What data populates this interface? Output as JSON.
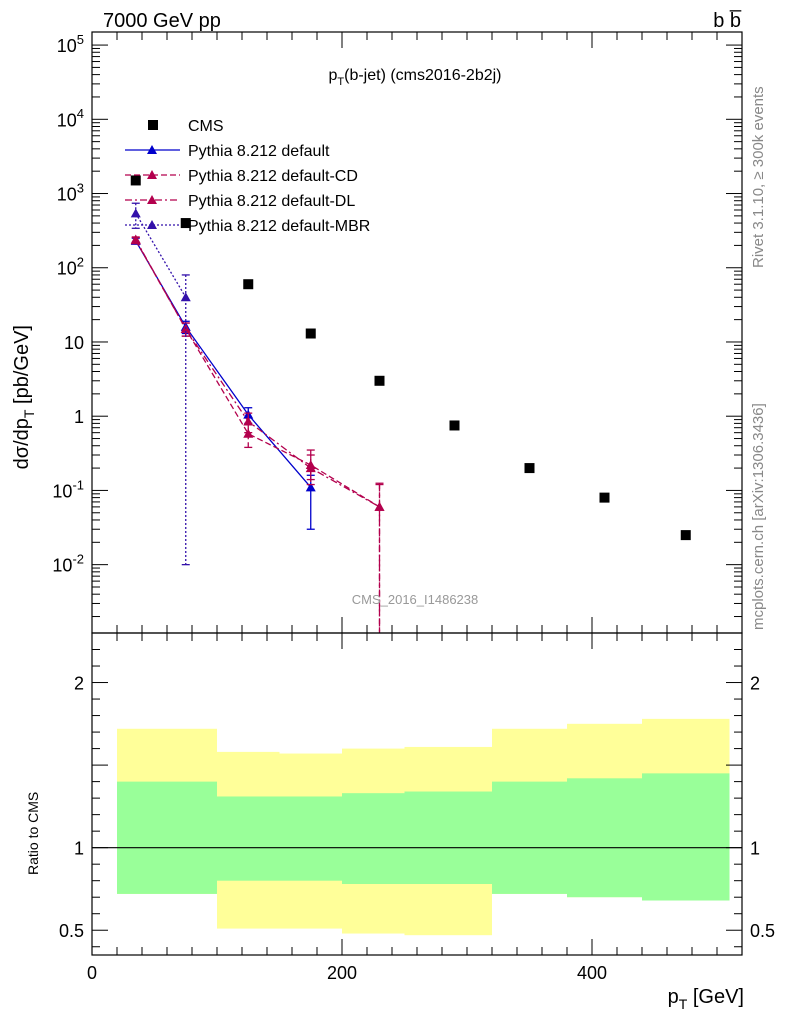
{
  "header": {
    "left": "7000 GeV pp",
    "right": "b b̅"
  },
  "side_labels": {
    "rivet": "Rivet 3.1.10, ≥ 300k events",
    "mcplots": "mcplots.cern.ch [arXiv:1306.3436]"
  },
  "watermark": "CMS_2016_I1486238",
  "colors": {
    "cms": "#000000",
    "default": "#0000cc",
    "default_cd": "#b3004d",
    "default_dl": "#b3004d",
    "default_mbr": "#3311aa",
    "band_outer": "#ffff99",
    "band_inner": "#99ff99"
  },
  "chart_data": [
    {
      "type": "scatter",
      "title": "p_T(b-jet) (cms2016-2b2j)",
      "xlabel": "p_T [GeV]",
      "ylabel": "dσ/dp_T [pb/GeV]",
      "yscale": "log",
      "xlim": [
        0,
        520
      ],
      "ylim": [
        0.0012,
        150000
      ],
      "legend_position": "top-left",
      "y_tick_labels": [
        "10^-2",
        "10^-1",
        "1",
        "10",
        "10^2",
        "10^3",
        "10^4",
        "10^5"
      ],
      "series": [
        {
          "name": "CMS",
          "style": "markers",
          "x": [
            35,
            75,
            125,
            175,
            230,
            290,
            350,
            410,
            475
          ],
          "y": [
            1500,
            400,
            60,
            13,
            3.0,
            0.75,
            0.2,
            0.08,
            0.025
          ]
        },
        {
          "name": "Pythia 8.212 default",
          "style": "solid",
          "x": [
            35,
            75,
            125,
            175
          ],
          "y": [
            230,
            16,
            1.05,
            0.11
          ],
          "yerr_low": [
            20,
            3,
            0.25,
            0.08
          ],
          "yerr_high": [
            20,
            3,
            0.25,
            0.05
          ]
        },
        {
          "name": "Pythia 8.212 default-CD",
          "style": "dashed",
          "x": [
            35,
            75,
            125,
            175,
            230
          ],
          "y": [
            235,
            15,
            0.58,
            0.22,
            0.06
          ],
          "yerr_low": [
            20,
            3,
            0.2,
            0.08,
            0.059
          ],
          "yerr_high": [
            20,
            3,
            0.2,
            0.13,
            0.065
          ]
        },
        {
          "name": "Pythia 8.212 default-DL",
          "style": "dashdot",
          "x": [
            35,
            75,
            125,
            175,
            230
          ],
          "y": [
            240,
            15,
            0.85,
            0.2,
            0.06
          ],
          "yerr_low": [
            20,
            3,
            0.25,
            0.08,
            0.059
          ],
          "yerr_high": [
            20,
            3,
            0.25,
            0.1,
            0.06
          ]
        },
        {
          "name": "Pythia 8.212 default-MBR",
          "style": "dotted",
          "x": [
            35,
            75
          ],
          "y": [
            540,
            40
          ],
          "yerr_low": [
            200,
            39.99
          ],
          "yerr_high": [
            200,
            40
          ]
        }
      ]
    },
    {
      "type": "area",
      "title": "",
      "xlabel": "p_T [GeV]",
      "ylabel": "Ratio to CMS",
      "xlim": [
        0,
        520
      ],
      "ylim": [
        0.35,
        2.3
      ],
      "x_tick_labels": [
        "0",
        "200",
        "400"
      ],
      "y_tick_labels": [
        "0.5",
        "1",
        "2"
      ],
      "reference_line": 1,
      "bands": {
        "x_edges": [
          20,
          100,
          150,
          200,
          250,
          320,
          380,
          440,
          510
        ],
        "outer_low": [
          0.72,
          0.51,
          0.51,
          0.48,
          0.47,
          0.72,
          0.7,
          0.68
        ],
        "outer_high": [
          1.72,
          1.58,
          1.57,
          1.6,
          1.61,
          1.72,
          1.75,
          1.78
        ],
        "inner_low": [
          0.72,
          0.8,
          0.8,
          0.78,
          0.78,
          0.72,
          0.7,
          0.68
        ],
        "inner_high": [
          1.4,
          1.31,
          1.31,
          1.33,
          1.34,
          1.4,
          1.42,
          1.45
        ]
      }
    }
  ]
}
